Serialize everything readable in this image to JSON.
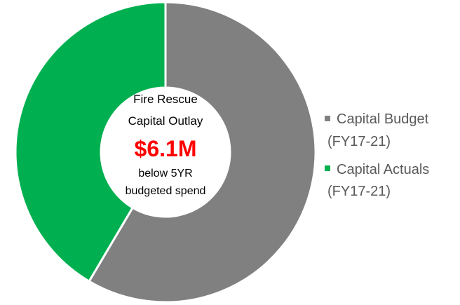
{
  "chart_data": {
    "type": "pie",
    "donut": true,
    "series": [
      {
        "name": "Capital Budget (FY17-21)",
        "value": 58.5,
        "color": "#808080"
      },
      {
        "name": "Capital Actuals (FY17-21)",
        "value": 41.5,
        "color": "#00b050"
      }
    ],
    "center_label": {
      "line1": "Fire Rescue",
      "line2": "Capital Outlay",
      "highlight": "$6.1M",
      "highlight_color": "#ff0000",
      "line3": "below 5YR",
      "line4": "budgeted spend"
    },
    "legend": {
      "placement": "right",
      "items": [
        {
          "line1": "Capital Budget",
          "line2": "(FY17-21)",
          "color": "#808080"
        },
        {
          "line1": "Capital Actuals",
          "line2": "(FY17-21)",
          "color": "#00b050"
        }
      ]
    }
  }
}
